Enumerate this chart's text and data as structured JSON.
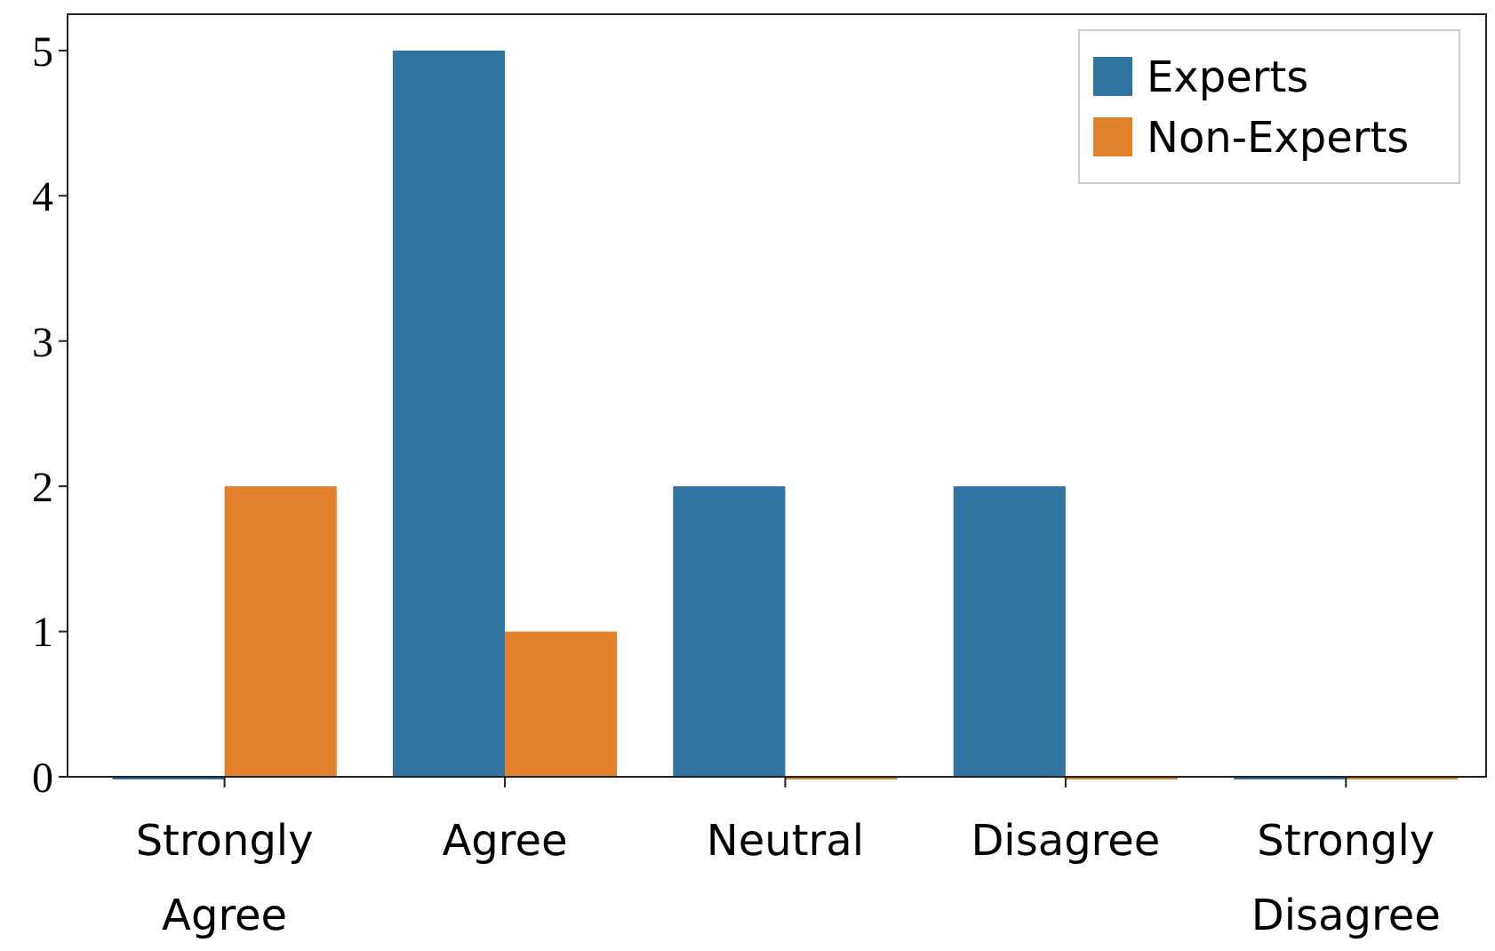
{
  "chart_data": {
    "type": "bar",
    "categories": [
      "Strongly\nAgree",
      "Agree",
      "Neutral",
      "Disagree",
      "Strongly\nDisagree"
    ],
    "series": [
      {
        "name": "Experts",
        "color": "#3274a1",
        "values": [
          0,
          5,
          2,
          2,
          0
        ]
      },
      {
        "name": "Non-Experts",
        "color": "#e1812c",
        "values": [
          2,
          1,
          0,
          0,
          0
        ]
      }
    ],
    "ylim": [
      0,
      5.25
    ],
    "yticks": [
      0,
      1,
      2,
      3,
      4,
      5
    ],
    "grid": false,
    "legend": "top right"
  }
}
